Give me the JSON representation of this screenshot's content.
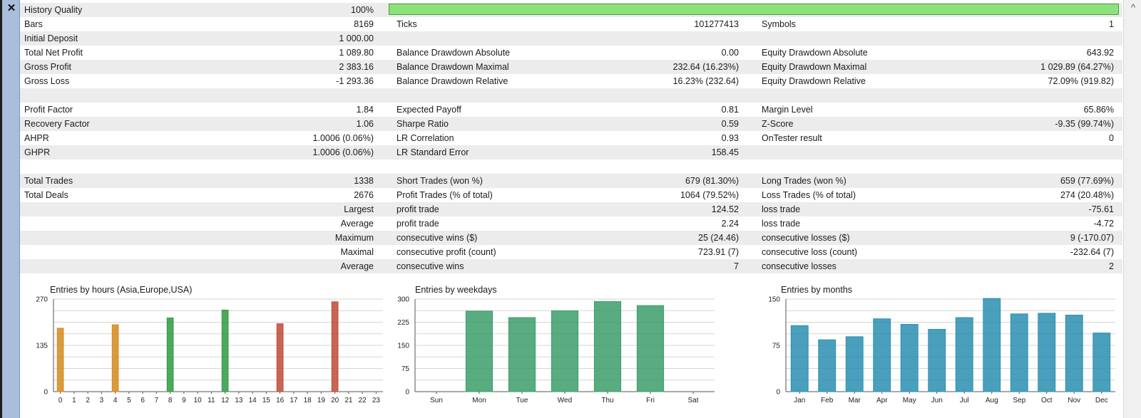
{
  "rows": [
    {
      "c1": {
        "label": "History Quality",
        "value": "100%"
      },
      "bar": {
        "percent": 100,
        "color": "#8ce27a"
      }
    },
    {
      "c1": {
        "label": "Bars",
        "value": "8169"
      },
      "c2": {
        "label": "Ticks",
        "value": "101277413"
      },
      "c3": {
        "label": "Symbols",
        "value": "1"
      }
    },
    {
      "c1": {
        "label": "Initial Deposit",
        "value": "1 000.00"
      }
    },
    {
      "c1": {
        "label": "Total Net Profit",
        "value": "1 089.80"
      },
      "c2": {
        "label": "Balance Drawdown Absolute",
        "value": "0.00"
      },
      "c3": {
        "label": "Equity Drawdown Absolute",
        "value": "643.92"
      }
    },
    {
      "c1": {
        "label": "Gross Profit",
        "value": "2 383.16"
      },
      "c2": {
        "label": "Balance Drawdown Maximal",
        "value": "232.64 (16.23%)"
      },
      "c3": {
        "label": "Equity Drawdown Maximal",
        "value": "1 029.89 (64.27%)"
      }
    },
    {
      "c1": {
        "label": "Gross Loss",
        "value": "-1 293.36"
      },
      "c2": {
        "label": "Balance Drawdown Relative",
        "value": "16.23% (232.64)"
      },
      "c3": {
        "label": "Equity Drawdown Relative",
        "value": "72.09% (919.82)"
      }
    },
    {},
    {
      "c1": {
        "label": "Profit Factor",
        "value": "1.84"
      },
      "c2": {
        "label": "Expected Payoff",
        "value": "0.81"
      },
      "c3": {
        "label": "Margin Level",
        "value": "65.86%"
      }
    },
    {
      "c1": {
        "label": "Recovery Factor",
        "value": "1.06"
      },
      "c2": {
        "label": "Sharpe Ratio",
        "value": "0.59"
      },
      "c3": {
        "label": "Z-Score",
        "value": "-9.35 (99.74%)"
      }
    },
    {
      "c1": {
        "label": "AHPR",
        "value": "1.0006 (0.06%)"
      },
      "c2": {
        "label": "LR Correlation",
        "value": "0.93"
      },
      "c3": {
        "label": "OnTester result",
        "value": "0"
      }
    },
    {
      "c1": {
        "label": "GHPR",
        "value": "1.0006 (0.06%)"
      },
      "c2": {
        "label": "LR Standard Error",
        "value": "158.45"
      }
    },
    {},
    {
      "c1": {
        "label": "Total Trades",
        "value": "1338"
      },
      "c2": {
        "label": "Short Trades (won %)",
        "value": "679 (81.30%)"
      },
      "c3": {
        "label": "Long Trades (won %)",
        "value": "659 (77.69%)"
      }
    },
    {
      "c1": {
        "label": "Total Deals",
        "value": "2676"
      },
      "c2": {
        "label": "Profit Trades (% of total)",
        "value": "1064 (79.52%)"
      },
      "c3": {
        "label": "Loss Trades (% of total)",
        "value": "274 (20.48%)"
      }
    },
    {
      "c1": {
        "label": "",
        "value": "Largest"
      },
      "c2": {
        "label": "profit trade",
        "value": "124.52"
      },
      "c3": {
        "label": "loss trade",
        "value": "-75.61"
      }
    },
    {
      "c1": {
        "label": "",
        "value": "Average"
      },
      "c2": {
        "label": "profit trade",
        "value": "2.24"
      },
      "c3": {
        "label": "loss trade",
        "value": "-4.72"
      }
    },
    {
      "c1": {
        "label": "",
        "value": "Maximum"
      },
      "c2": {
        "label": "consecutive wins ($)",
        "value": "25 (24.46)"
      },
      "c3": {
        "label": "consecutive losses ($)",
        "value": "9 (-170.07)"
      }
    },
    {
      "c1": {
        "label": "",
        "value": "Maximal"
      },
      "c2": {
        "label": "consecutive profit (count)",
        "value": "723.91 (7)"
      },
      "c3": {
        "label": "consecutive loss (count)",
        "value": "-232.64 (7)"
      }
    },
    {
      "c1": {
        "label": "",
        "value": "Average"
      },
      "c2": {
        "label": "consecutive wins",
        "value": "7"
      },
      "c3": {
        "label": "consecutive losses",
        "value": "2"
      }
    },
    {}
  ],
  "chart_data": [
    {
      "type": "bar",
      "title": "Entries by hours (Asia,Europe,USA)",
      "categories": [
        "0",
        "1",
        "2",
        "3",
        "4",
        "5",
        "6",
        "7",
        "8",
        "9",
        "10",
        "11",
        "12",
        "13",
        "14",
        "15",
        "16",
        "17",
        "18",
        "19",
        "20",
        "21",
        "22",
        "23"
      ],
      "values": [
        185,
        0,
        0,
        0,
        195,
        0,
        0,
        0,
        215,
        0,
        0,
        0,
        238,
        0,
        0,
        0,
        198,
        0,
        0,
        0,
        262,
        0,
        0,
        0
      ],
      "yticks": [
        "0",
        "135",
        "270"
      ],
      "ylim": [
        0,
        270
      ],
      "bar_colors": [
        "#d48a1c",
        "#d48a1c",
        "#d48a1c",
        "#d48a1c",
        "#d48a1c",
        "#d48a1c",
        "#d48a1c",
        "#d48a1c",
        "#2e9a3e",
        "#2e9a3e",
        "#2e9a3e",
        "#2e9a3e",
        "#2e9a3e",
        "#2e9a3e",
        "#2e9a3e",
        "#2e9a3e",
        "#c04a35",
        "#c04a35",
        "#c04a35",
        "#c04a35",
        "#c04a35",
        "#c04a35",
        "#c04a35",
        "#c04a35"
      ],
      "grid": true
    },
    {
      "type": "bar",
      "title": "Entries by weekdays",
      "categories": [
        "Sun",
        "Mon",
        "Tue",
        "Wed",
        "Thu",
        "Fri",
        "Sat"
      ],
      "values": [
        0,
        261,
        240,
        262,
        292,
        279,
        0
      ],
      "yticks": [
        "0",
        "75",
        "150",
        "225",
        "300"
      ],
      "ylim": [
        0,
        300
      ],
      "bar_colors": [
        "#3c9e6a",
        "#3c9e6a",
        "#3c9e6a",
        "#3c9e6a",
        "#3c9e6a",
        "#3c9e6a",
        "#3c9e6a"
      ],
      "grid": true
    },
    {
      "type": "bar",
      "title": "Entries by months",
      "categories": [
        "Jan",
        "Feb",
        "Mar",
        "Apr",
        "May",
        "Jun",
        "Jul",
        "Aug",
        "Sep",
        "Oct",
        "Nov",
        "Dec"
      ],
      "values": [
        107,
        84,
        89,
        118,
        109,
        101,
        120,
        151,
        126,
        127,
        124,
        95
      ],
      "yticks": [
        "0",
        "75",
        "150"
      ],
      "ylim": [
        0,
        150
      ],
      "bar_colors": [
        "#2a8fb0",
        "#2a8fb0",
        "#2a8fb0",
        "#2a8fb0",
        "#2a8fb0",
        "#2a8fb0",
        "#2a8fb0",
        "#2a8fb0",
        "#2a8fb0",
        "#2a8fb0",
        "#2a8fb0",
        "#2a8fb0"
      ],
      "grid": true
    }
  ]
}
